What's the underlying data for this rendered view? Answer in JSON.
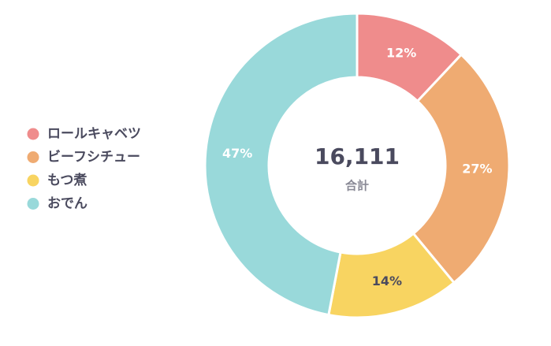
{
  "chart_data": {
    "type": "donut",
    "categories": [
      "ロールキャベツ",
      "ビーフシチュー",
      "もつ煮",
      "おでん"
    ],
    "values": [
      12,
      27,
      14,
      47
    ],
    "value_labels": [
      "12%",
      "27%",
      "14%",
      "47%"
    ],
    "colors": [
      "#ef8c8c",
      "#efab72",
      "#f8d461",
      "#99d9da"
    ],
    "label_colors": [
      "#ffffff",
      "#ffffff",
      "#4a4a5e",
      "#ffffff"
    ],
    "center_label": "16,111",
    "center_sublabel": "合計",
    "legend": "left"
  }
}
